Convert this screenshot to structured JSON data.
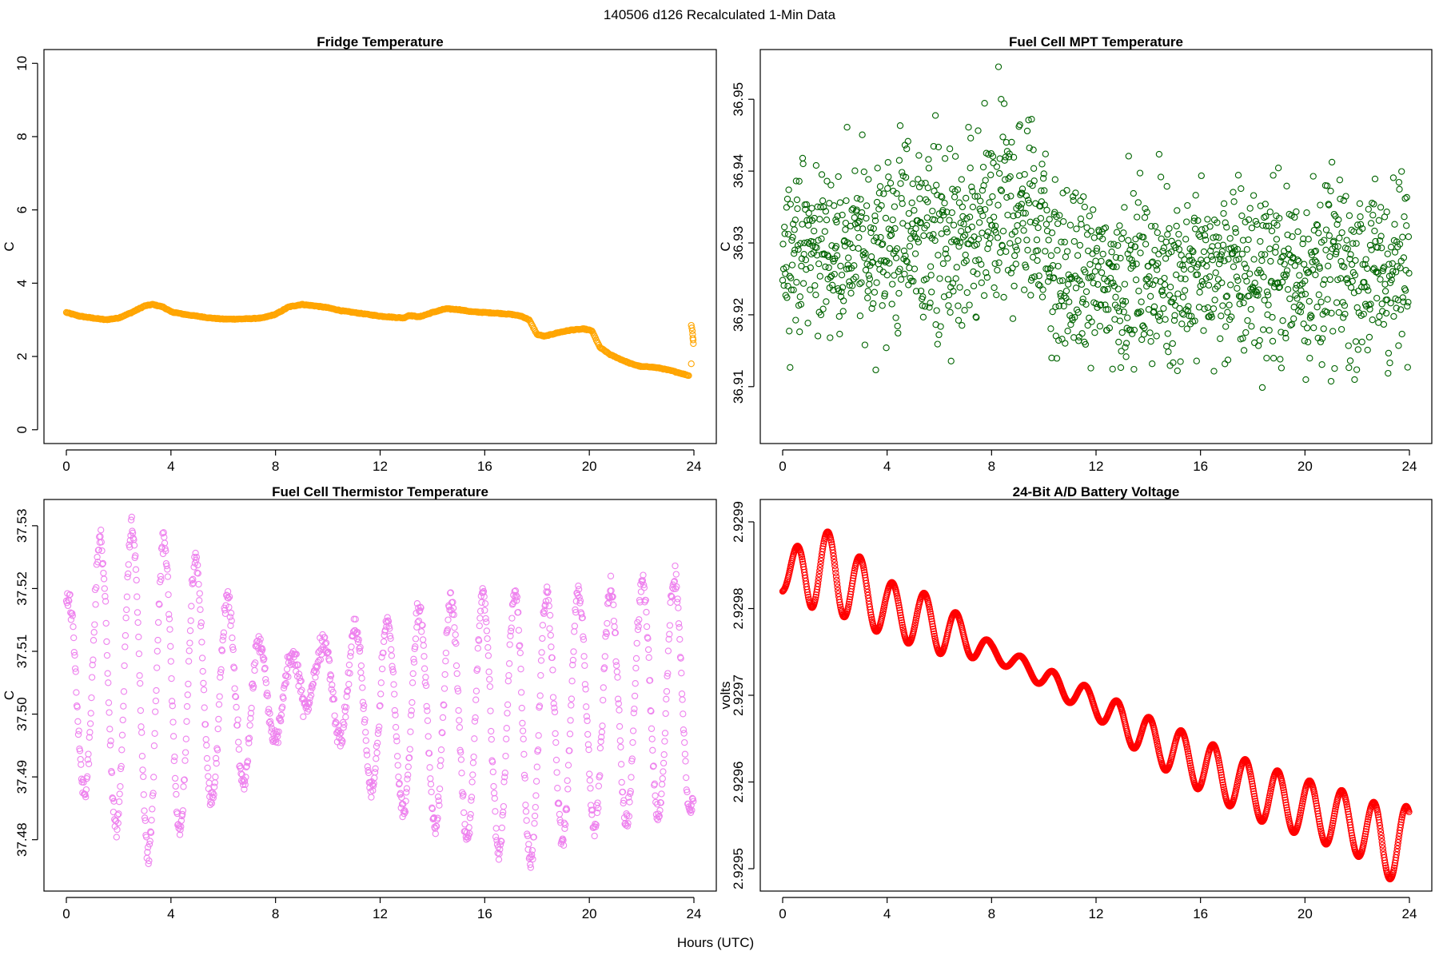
{
  "figure": {
    "title": "140506   d126   Recalculated 1-Min Data",
    "xlabel": "Hours (UTC)"
  },
  "chart_data": [
    {
      "type": "scatter",
      "title": "Fridge Temperature",
      "xlabel": "",
      "ylabel": "C",
      "xlim": [
        0,
        24
      ],
      "ylim": [
        0,
        10
      ],
      "xticks": [
        "0",
        "4",
        "8",
        "12",
        "16",
        "20",
        "24"
      ],
      "yticks": [
        "0",
        "2",
        "4",
        "6",
        "8",
        "10"
      ],
      "color": "#FFA500",
      "series": [
        {
          "name": "Fridge Temperature",
          "kind": "dense_curve",
          "x": [
            0,
            0.5,
            1,
            1.5,
            2,
            2.5,
            3,
            3.3,
            3.7,
            4,
            4.5,
            5,
            5.5,
            6,
            6.5,
            7,
            7.5,
            8,
            8.5,
            9,
            9.5,
            10,
            10.5,
            11,
            11.5,
            12,
            12.5,
            12.9,
            13.1,
            13.5,
            14,
            14.5,
            15,
            15.5,
            16,
            16.5,
            17,
            17.4,
            17.7,
            18,
            18.3,
            18.8,
            19.3,
            19.8,
            20.1,
            20.4,
            20.8,
            21.2,
            21.6,
            22,
            22.3,
            22.7,
            23.2,
            23.8
          ],
          "y": [
            3.2,
            3.1,
            3.05,
            3.0,
            3.05,
            3.2,
            3.38,
            3.42,
            3.35,
            3.22,
            3.15,
            3.1,
            3.05,
            3.02,
            3.02,
            3.03,
            3.05,
            3.15,
            3.35,
            3.42,
            3.38,
            3.33,
            3.25,
            3.2,
            3.15,
            3.1,
            3.07,
            3.05,
            3.12,
            3.08,
            3.2,
            3.3,
            3.28,
            3.22,
            3.2,
            3.18,
            3.15,
            3.1,
            3.0,
            2.6,
            2.55,
            2.65,
            2.72,
            2.75,
            2.7,
            2.25,
            2.05,
            1.92,
            1.8,
            1.72,
            1.72,
            1.68,
            1.6,
            1.48
          ]
        },
        {
          "name": "Fridge Temperature (outliers)",
          "kind": "points",
          "x": [
            23.9,
            23.92,
            23.94,
            23.95,
            23.96,
            23.97,
            23.98,
            23.9
          ],
          "y": [
            2.85,
            2.78,
            2.7,
            2.6,
            2.5,
            2.45,
            2.35,
            1.8
          ]
        }
      ]
    },
    {
      "type": "scatter",
      "title": "Fuel Cell MPT Temperature",
      "xlabel": "",
      "ylabel": "C",
      "xlim": [
        0,
        24
      ],
      "ylim": [
        36.904,
        36.955
      ],
      "xticks": [
        "0",
        "4",
        "8",
        "12",
        "16",
        "20",
        "24"
      ],
      "yticks": [
        "36.91",
        "36.92",
        "36.93",
        "36.94",
        "36.95"
      ],
      "color": "#006400",
      "series": [
        {
          "name": "Fuel Cell MPT Temperature",
          "kind": "noisy_points",
          "points_per_hour": 60,
          "x": [
            0,
            2,
            4,
            5,
            7,
            8,
            9,
            10,
            10.5,
            12,
            16,
            20,
            24
          ],
          "center": [
            36.93,
            36.929,
            36.93,
            36.932,
            36.928,
            36.933,
            36.935,
            36.933,
            36.925,
            36.925,
            36.926,
            36.926,
            36.926
          ],
          "spread": [
            0.006,
            0.006,
            0.008,
            0.008,
            0.008,
            0.008,
            0.008,
            0.007,
            0.007,
            0.006,
            0.007,
            0.007,
            0.007
          ]
        }
      ]
    },
    {
      "type": "scatter",
      "title": "Fuel Cell Thermistor Temperature",
      "xlabel": "",
      "ylabel": "C",
      "xlim": [
        0,
        24
      ],
      "ylim": [
        37.474,
        37.532
      ],
      "xticks": [
        "0",
        "4",
        "8",
        "12",
        "16",
        "20",
        "24"
      ],
      "yticks": [
        "37.48",
        "37.49",
        "37.50",
        "37.51",
        "37.52",
        "37.53"
      ],
      "color": "#EE82EE",
      "series": [
        {
          "name": "Fuel Cell Thermistor Temperature",
          "kind": "oscillating_points",
          "points_per_hour": 50,
          "period_hours": 1.22,
          "x": [
            0,
            1.3,
            2.6,
            3.3,
            5,
            7,
            8,
            9.5,
            11,
            12,
            14,
            16,
            17.5,
            18.5,
            20.5,
            22,
            23.5,
            24
          ],
          "center": [
            37.505,
            37.506,
            37.505,
            37.503,
            37.504,
            37.502,
            37.502,
            37.507,
            37.503,
            37.5,
            37.5,
            37.499,
            37.498,
            37.499,
            37.501,
            37.502,
            37.503,
            37.503
          ],
          "amplitude": [
            0.013,
            0.022,
            0.025,
            0.026,
            0.02,
            0.012,
            0.006,
            0.004,
            0.011,
            0.014,
            0.018,
            0.02,
            0.022,
            0.02,
            0.019,
            0.019,
            0.019,
            0.019
          ]
        }
      ]
    },
    {
      "type": "scatter",
      "title": "24-Bit A/D Battery Voltage",
      "xlabel": "",
      "ylabel": "volts",
      "xlim": [
        0,
        24
      ],
      "ylim": [
        2.92949,
        2.92991
      ],
      "xticks": [
        "0",
        "4",
        "8",
        "12",
        "16",
        "20",
        "24"
      ],
      "yticks": [
        "2.9295",
        "2.9296",
        "2.9297",
        "2.9298",
        "2.9299"
      ],
      "color": "#FF0000",
      "series": [
        {
          "name": "24-Bit A/D Battery Voltage",
          "kind": "dense_oscillation",
          "points_per_hour": 60,
          "period_hours": 1.23,
          "x": [
            0,
            1,
            2,
            4,
            6,
            8,
            9.5,
            10,
            12,
            14,
            16,
            18,
            20,
            22,
            23,
            24
          ],
          "center": [
            2.92983,
            2.92985,
            2.92984,
            2.9298,
            2.92978,
            2.92975,
            2.92973,
            2.92972,
            2.92969,
            2.92965,
            2.92962,
            2.92959,
            2.92957,
            2.92955,
            2.92953,
            2.92953
          ],
          "amplitude": [
            1.2e-05,
            4.8e-05,
            4.5e-05,
            3.2e-05,
            3.2e-05,
            1e-05,
            1e-05,
            1.2e-05,
            1.6e-05,
            2.5e-05,
            3e-05,
            3.2e-05,
            3.3e-05,
            3.5e-05,
            4.2e-05,
            4.2e-05
          ]
        }
      ]
    }
  ]
}
